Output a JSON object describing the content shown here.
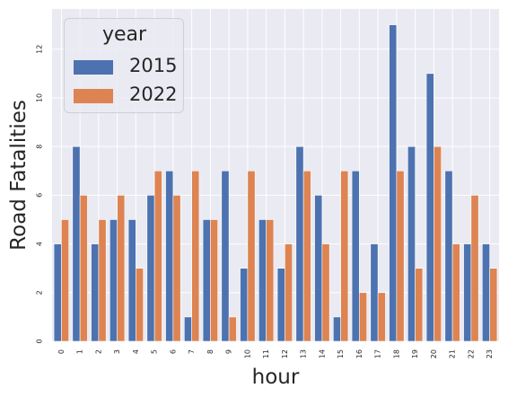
{
  "chart_data": {
    "type": "bar",
    "xlabel": "hour",
    "ylabel": "Road Fatalities",
    "ylim": [
      0,
      13.65
    ],
    "yticks": [
      0,
      2,
      4,
      6,
      8,
      10,
      12
    ],
    "grid": true,
    "legend": {
      "title": "year",
      "placement": "top-left"
    },
    "categories": [
      "0",
      "1",
      "2",
      "3",
      "4",
      "5",
      "6",
      "7",
      "8",
      "9",
      "10",
      "11",
      "12",
      "13",
      "14",
      "15",
      "16",
      "17",
      "18",
      "19",
      "20",
      "21",
      "22",
      "23"
    ],
    "series": [
      {
        "name": "2015",
        "color": "#4c72b0",
        "values": [
          4,
          8,
          4,
          5,
          5,
          6,
          7,
          1,
          5,
          7,
          3,
          5,
          3,
          8,
          6,
          1,
          7,
          4,
          13,
          8,
          11,
          7,
          4,
          4
        ]
      },
      {
        "name": "2022",
        "color": "#dd8452",
        "values": [
          5,
          6,
          5,
          6,
          3,
          7,
          6,
          7,
          5,
          1,
          7,
          5,
          4,
          7,
          4,
          7,
          2,
          2,
          7,
          3,
          8,
          4,
          6,
          3
        ]
      }
    ]
  }
}
